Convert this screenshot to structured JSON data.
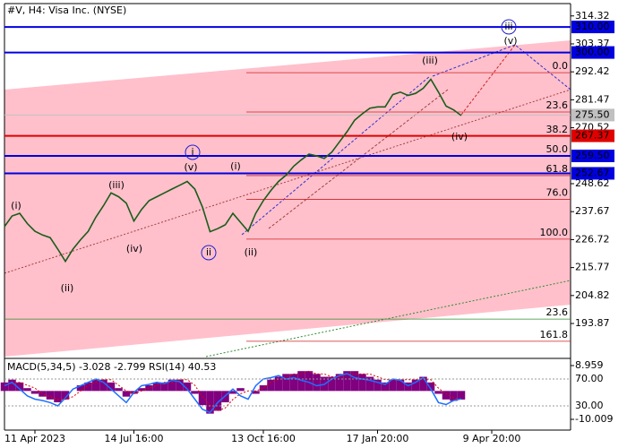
{
  "chart_data": [
    {
      "type": "line",
      "title": "#V, H4:  Visa Inc. (NYSE)",
      "color": "#1a5c1a",
      "categories": [
        null,
        null,
        null,
        null,
        "11 Apr 2023",
        null,
        null,
        null,
        null,
        null,
        null,
        null,
        null,
        null,
        null,
        null,
        null,
        "14 Jul 16:00",
        null,
        null,
        null,
        null,
        null,
        null,
        null,
        null,
        null,
        null,
        null,
        null,
        null,
        null,
        null,
        null,
        "13 Oct 16:00",
        null,
        null,
        null,
        null,
        null,
        null,
        null,
        null,
        null,
        null,
        null,
        null,
        null,
        null,
        "17 Jan 20:00",
        null,
        null,
        null,
        null,
        null,
        null,
        null,
        null,
        null,
        null,
        null,
        null,
        null,
        null,
        "9 Apr 20:00",
        null,
        null,
        null,
        null,
        null,
        null,
        null,
        null,
        null,
        null
      ],
      "values": [
        231.8,
        236,
        237,
        233,
        230,
        228.5,
        227.5,
        223,
        218.2,
        223,
        226.7,
        230,
        235.5,
        240,
        245,
        243.5,
        241,
        234,
        238.5,
        242,
        243.5,
        245,
        246.5,
        248,
        249.5,
        246.5,
        239.5,
        229.8,
        231,
        232.5,
        237,
        233.5,
        230,
        237,
        242,
        246,
        249.5,
        252,
        255.5,
        258,
        260.2,
        259.5,
        258.5,
        261,
        265,
        269,
        273.5,
        276,
        278.2,
        278.7,
        278.7,
        283.5,
        284.5,
        283.2,
        284,
        286,
        289.5,
        284.5,
        279,
        277.5,
        275.3,
        null,
        null,
        null,
        null,
        null,
        null,
        null,
        null,
        null,
        null,
        null,
        null,
        null,
        null
      ],
      "ylim": [
        180.9,
        318.8
      ],
      "yticks": [
        314.32,
        303.37,
        292.42,
        281.47,
        270.52,
        248.62,
        237.67,
        226.72,
        215.77,
        204.82,
        193.87
      ],
      "levels": [
        {
          "value": 310,
          "label": "310.00",
          "color": "#0000e0"
        },
        {
          "value": 300,
          "label": "300.00",
          "color": "#0000e0"
        },
        {
          "value": 275.5,
          "label": "275.50",
          "color": "#c0c0c0"
        },
        {
          "value": 267.37,
          "label": "267.37",
          "color": "#e00000"
        },
        {
          "value": 259.5,
          "label": "259.50",
          "color": "#0000e0"
        },
        {
          "value": 252.67,
          "label": "252.67",
          "color": "#0000e0"
        }
      ],
      "fib_lines": [
        {
          "label": "0.0",
          "price": 292.1
        },
        {
          "label": "23.6",
          "price": 276.7
        },
        {
          "label": "38.2",
          "price": 267.2
        },
        {
          "label": "50.0",
          "price": 259.5
        },
        {
          "label": "61.8",
          "price": 251.8
        },
        {
          "label": "76.0",
          "price": 242.5
        },
        {
          "label": "100.0",
          "price": 226.9
        },
        {
          "label": "23.6",
          "price": 195.6
        },
        {
          "label": "161.8",
          "price": 186.9
        }
      ],
      "waves": [
        {
          "text": "(i)",
          "color": "#d02020"
        },
        {
          "text": "(ii)",
          "color": "#d02020"
        },
        {
          "text": "(iii)",
          "color": "#d02020"
        },
        {
          "text": "(iv)",
          "color": "#d02020"
        },
        {
          "text": "(v)",
          "color": "#d02020"
        },
        {
          "text": "i",
          "color": "#2020d0"
        },
        {
          "text": "ii",
          "color": "#2020d0"
        },
        {
          "text": "(i)",
          "color": "#d02020"
        },
        {
          "text": "(ii)",
          "color": "#d02020"
        },
        {
          "text": "(iii)",
          "color": "#d02020"
        },
        {
          "text": "(iv)",
          "color": "#d02020"
        },
        {
          "text": "iii",
          "color": "#2020d0"
        },
        {
          "text": "(v)",
          "color": "#d02020"
        }
      ]
    },
    {
      "type": "macd",
      "title": "MACD(5,34,5) -3.028 -2.799 RSI(14) 40.53",
      "ylim": [
        -13.17,
        11.17
      ],
      "yticks": [
        8.959,
        -10.009
      ],
      "y2lim": [
        -3.3,
        99.3
      ],
      "y2ticks": [
        {
          "value": 70,
          "label": "70.00"
        },
        {
          "value": 30,
          "label": "30.00"
        }
      ],
      "series": [
        {
          "name": "MACD",
          "color": "#800080",
          "values": [
            3,
            4,
            3,
            1,
            -1,
            -2,
            -3,
            -4,
            -3,
            0,
            2,
            3,
            4,
            4,
            3,
            1,
            -2,
            -1,
            1,
            2,
            3,
            3,
            4,
            4,
            3,
            -1,
            -5,
            -8,
            -7,
            -4,
            -1,
            1,
            0,
            -1,
            2,
            4,
            5,
            6,
            6,
            7,
            7,
            6,
            5,
            5,
            6,
            7,
            7,
            6,
            5,
            4,
            3,
            4,
            4,
            3,
            4,
            5,
            3,
            -1,
            -3,
            -3.5,
            -3.028,
            null,
            null,
            null,
            null,
            null,
            null,
            null,
            null,
            null,
            null,
            null,
            null,
            null,
            null
          ]
        },
        {
          "name": "Signal",
          "color": "#e00000",
          "values": [
            2,
            3,
            3,
            2,
            1,
            -1,
            -2,
            -3,
            -3,
            -2,
            0,
            2,
            3,
            4,
            4,
            2,
            0,
            -1,
            0,
            1,
            2,
            3,
            3,
            4,
            4,
            2,
            -2,
            -5,
            -7,
            -6,
            -3,
            -1,
            0,
            0,
            1,
            3,
            4,
            5,
            6,
            6,
            7,
            6,
            6,
            5,
            5,
            6,
            6,
            6,
            6,
            5,
            4,
            4,
            4,
            4,
            4,
            4,
            4,
            1,
            -1,
            -2.5,
            -2.799,
            null,
            null,
            null,
            null,
            null,
            null,
            null,
            null,
            null,
            null,
            null,
            null,
            null,
            null
          ]
        },
        {
          "name": "RSI(14)",
          "color": "#1e70ff",
          "axis": "y2",
          "values": [
            60,
            65,
            55,
            45,
            40,
            38,
            35,
            30,
            42,
            55,
            60,
            65,
            70,
            65,
            55,
            45,
            35,
            50,
            60,
            62,
            65,
            63,
            68,
            66,
            55,
            40,
            25,
            20,
            35,
            45,
            55,
            45,
            40,
            60,
            70,
            72,
            75,
            70,
            72,
            68,
            65,
            60,
            62,
            70,
            75,
            78,
            72,
            70,
            68,
            65,
            62,
            70,
            68,
            60,
            65,
            72,
            55,
            35,
            32,
            38,
            40.53,
            null,
            null,
            null,
            null,
            null,
            null,
            null,
            null,
            null,
            null,
            null,
            null,
            null,
            null
          ]
        }
      ]
    }
  ]
}
